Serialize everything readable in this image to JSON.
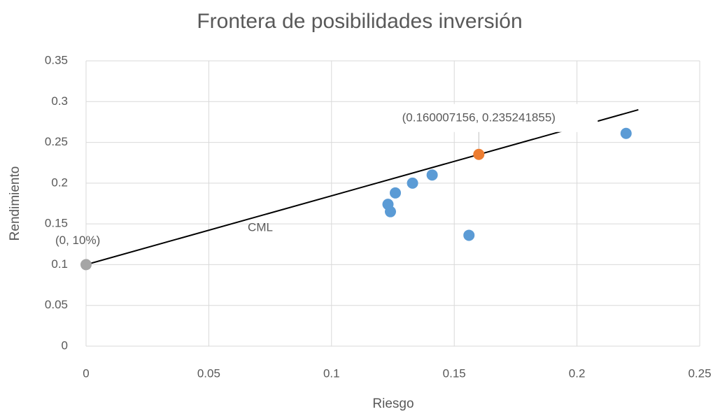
{
  "chart_data": {
    "type": "scatter",
    "title": "Frontera de posibilidades inversión",
    "xlabel": "Riesgo",
    "ylabel": "Rendimiento",
    "xlim": [
      0,
      0.25
    ],
    "xticks": [
      0,
      0.05,
      0.1,
      0.15,
      0.2,
      0.25
    ],
    "ylim": [
      0,
      0.35
    ],
    "yticks": [
      0,
      0.05,
      0.1,
      0.15,
      0.2,
      0.25,
      0.3,
      0.35
    ],
    "grid": true,
    "series": [
      {
        "color": "#5b9bd5",
        "x": [
          0.123,
          0.124,
          0.126,
          0.133,
          0.141,
          0.156,
          0.22
        ],
        "values": [
          0.174,
          0.165,
          0.188,
          0.2,
          0.21,
          0.136,
          0.261
        ]
      },
      {
        "color": "#ed7d31",
        "x": [
          0.160007156
        ],
        "values": [
          0.235241855
        ],
        "value_labels": [
          "(0.160007156, 0.235241855)"
        ]
      },
      {
        "color": "#a5a5a5",
        "x": [
          0
        ],
        "values": [
          0.1
        ],
        "value_labels": [
          "(0, 10%)"
        ]
      },
      {
        "type": "line",
        "color": "#000000",
        "x": [
          0,
          0.225
        ],
        "values": [
          0.1,
          0.29
        ]
      }
    ],
    "annotations": [
      "CML"
    ]
  }
}
